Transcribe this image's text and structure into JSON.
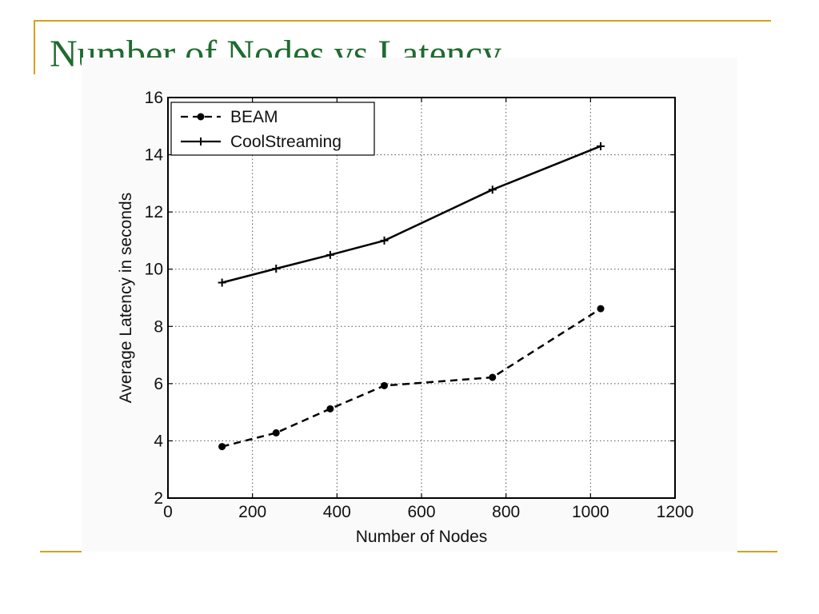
{
  "slide": {
    "title": "Number of Nodes vs Latency",
    "accent_color": "#d4a21e",
    "title_color": "#1f6b2f"
  },
  "chart_data": {
    "type": "line",
    "title": "",
    "xlabel": "Number of Nodes",
    "ylabel": "Average Latency in seconds",
    "xlim": [
      0,
      1200
    ],
    "ylim": [
      2,
      16
    ],
    "xticks": [
      0,
      200,
      400,
      600,
      800,
      1000,
      1200
    ],
    "yticks": [
      2,
      4,
      6,
      8,
      10,
      12,
      14,
      16
    ],
    "grid": true,
    "legend_position": "top-left",
    "series": [
      {
        "name": "BEAM",
        "line_style": "dashed",
        "marker": "dot",
        "x": [
          128,
          256,
          384,
          512,
          768,
          1024
        ],
        "y": [
          3.8,
          4.28,
          5.12,
          5.93,
          6.22,
          8.62
        ]
      },
      {
        "name": "CoolStreaming",
        "line_style": "solid",
        "marker": "plus",
        "x": [
          128,
          256,
          384,
          512,
          768,
          1024
        ],
        "y": [
          9.53,
          10.02,
          10.5,
          11.0,
          12.78,
          14.3
        ]
      }
    ]
  }
}
